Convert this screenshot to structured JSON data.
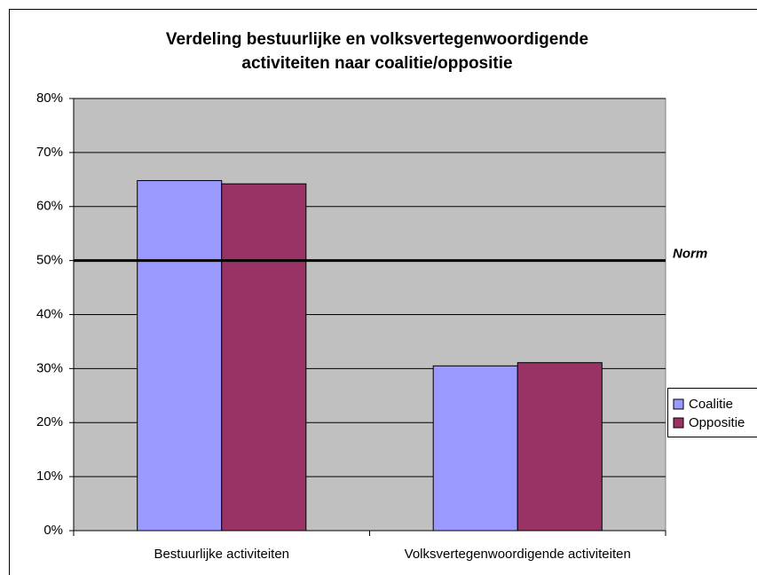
{
  "chart_data": {
    "type": "bar",
    "title": [
      "Verdeling bestuurlijke en volksvertegenwoordigende",
      "activiteiten naar coalitie/oppositie"
    ],
    "categories": [
      "Bestuurlijke activiteiten",
      "Volksvertegenwoordigende activiteiten"
    ],
    "series": [
      {
        "name": "Coalitie",
        "color": "#9999ff",
        "values": [
          64.8,
          30.5
        ]
      },
      {
        "name": "Oppositie",
        "color": "#993366",
        "values": [
          64.2,
          31.1
        ]
      }
    ],
    "ylim": [
      0,
      80
    ],
    "yticks": [
      {
        "value": 0,
        "label": "0%"
      },
      {
        "value": 10,
        "label": "10%"
      },
      {
        "value": 20,
        "label": "20%"
      },
      {
        "value": 30,
        "label": "30%"
      },
      {
        "value": 40,
        "label": "40%"
      },
      {
        "value": 50,
        "label": "50%"
      },
      {
        "value": 60,
        "label": "60%"
      },
      {
        "value": 70,
        "label": "70%"
      },
      {
        "value": 80,
        "label": "80%"
      }
    ],
    "grid": true,
    "plot_background": "#c0c0c0",
    "reference_line": {
      "value": 50,
      "label": "Norm"
    },
    "legend": "right"
  }
}
